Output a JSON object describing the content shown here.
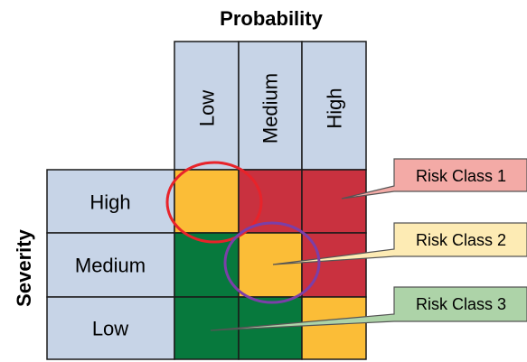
{
  "probability_title": "Probability",
  "severity_title": "Severity",
  "probability_levels": [
    "Low",
    "Medium",
    "High"
  ],
  "severity_levels": [
    "High",
    "Medium",
    "Low"
  ],
  "matrix": [
    [
      "Risk Class 2",
      "Risk Class 1",
      "Risk Class 1"
    ],
    [
      "Risk Class 3",
      "Risk Class 2",
      "Risk Class 1"
    ],
    [
      "Risk Class 3",
      "Risk Class 3",
      "Risk Class 2"
    ]
  ],
  "risk_classes": [
    {
      "label": "Risk Class 1",
      "cell_color": "#c9313f",
      "callout_color": "#f3aaa6"
    },
    {
      "label": "Risk Class 2",
      "cell_color": "#fbbd37",
      "callout_color": "#fdebb4"
    },
    {
      "label": "Risk Class 3",
      "cell_color": "#07793d",
      "callout_color": "#add3a8"
    }
  ],
  "header_color": "#c7d4e7",
  "highlights": [
    {
      "cell": "severity High / probability Low",
      "color": "#e8232a"
    },
    {
      "cell": "severity Medium / probability Medium",
      "color": "#7b3fa8"
    }
  ]
}
